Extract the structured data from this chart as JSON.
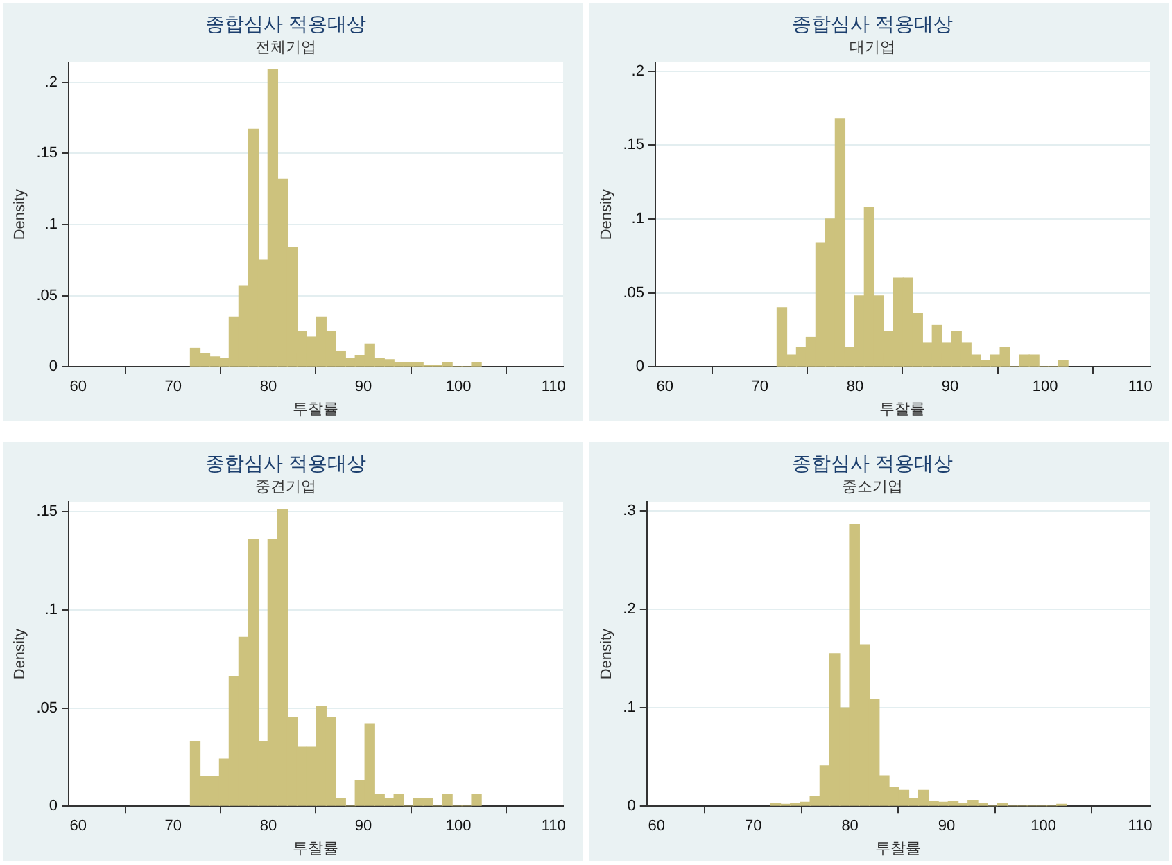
{
  "chart_data": [
    {
      "type": "histogram",
      "title": "종합심사 적용대상",
      "subtitle": "전체기업",
      "xlabel": "투찰률",
      "ylabel": "Density",
      "color": "#cdc27d",
      "grid": "y",
      "bins": [
        71.8,
        72.82,
        73.84,
        74.86,
        75.88,
        76.9,
        77.92,
        78.94,
        79.96,
        80.98,
        82,
        83.02,
        84.04,
        85.06,
        86.08,
        87.1,
        88.12,
        89.14,
        90.16,
        91.18,
        92.2,
        93.22,
        94.24,
        95.26,
        96.28,
        97.3,
        98.32,
        99.34,
        100.36,
        101.38,
        102.4
      ],
      "values": [
        0.013,
        0.009,
        0.007,
        0.006,
        0.035,
        0.057,
        0.167,
        0.075,
        0.209,
        0.132,
        0.084,
        0.025,
        0.021,
        0.035,
        0.025,
        0.011,
        0.006,
        0.008,
        0.016,
        0.006,
        0.005,
        0.003,
        0.003,
        0.003,
        0.001,
        0.001,
        0.003,
        0,
        0,
        0.003
      ],
      "xlim": [
        59,
        111
      ],
      "xticks": [
        60,
        70,
        80,
        90,
        100,
        110
      ],
      "ylim": [
        0,
        0.214
      ],
      "yticks": [
        {
          "value": 0,
          "label": "0"
        },
        {
          "value": 0.05,
          "label": ".05"
        },
        {
          "value": 0.1,
          "label": ".1"
        },
        {
          "value": 0.15,
          "label": ".15"
        },
        {
          "value": 0.2,
          "label": ".2"
        }
      ]
    },
    {
      "type": "histogram",
      "title": "종합심사 적용대상",
      "subtitle": "대기업",
      "xlabel": "투찰률",
      "ylabel": "Density",
      "color": "#cdc27d",
      "grid": "y",
      "bins": [
        71.8,
        72.82,
        73.84,
        74.86,
        75.88,
        76.9,
        77.92,
        78.94,
        79.96,
        80.98,
        82,
        83.02,
        84.04,
        85.06,
        86.08,
        87.1,
        88.12,
        89.14,
        90.16,
        91.18,
        92.2,
        93.22,
        94.24,
        95.26,
        96.28,
        97.3,
        98.32,
        99.34,
        100.36,
        101.38,
        102.4
      ],
      "values": [
        0.04,
        0.008,
        0.013,
        0.02,
        0.084,
        0.1,
        0.168,
        0.013,
        0.048,
        0.108,
        0.048,
        0.024,
        0.06,
        0.06,
        0.036,
        0.016,
        0.028,
        0.016,
        0.024,
        0.016,
        0.008,
        0.004,
        0.008,
        0.013,
        0,
        0.008,
        0.008,
        0,
        0,
        0.004
      ],
      "xlim": [
        59,
        111
      ],
      "xticks": [
        60,
        70,
        80,
        90,
        100,
        110
      ],
      "ylim": [
        0,
        0.206
      ],
      "yticks": [
        {
          "value": 0,
          "label": "0"
        },
        {
          "value": 0.05,
          "label": ".05"
        },
        {
          "value": 0.1,
          "label": ".1"
        },
        {
          "value": 0.15,
          "label": ".15"
        },
        {
          "value": 0.2,
          "label": ".2"
        }
      ]
    },
    {
      "type": "histogram",
      "title": "종합심사 적용대상",
      "subtitle": "중견기업",
      "xlabel": "투찰률",
      "ylabel": "Density",
      "color": "#cdc27d",
      "grid": "y",
      "bins": [
        71.8,
        72.82,
        73.84,
        74.86,
        75.88,
        76.9,
        77.92,
        78.94,
        79.96,
        80.98,
        82,
        83.02,
        84.04,
        85.06,
        86.08,
        87.1,
        88.12,
        89.14,
        90.16,
        91.18,
        92.2,
        93.22,
        94.24,
        95.26,
        96.28,
        97.3,
        98.32,
        99.34,
        100.36,
        101.38,
        102.4
      ],
      "values": [
        0.033,
        0.015,
        0.015,
        0.024,
        0.066,
        0.086,
        0.136,
        0.033,
        0.136,
        0.151,
        0.045,
        0.03,
        0.03,
        0.051,
        0.045,
        0.004,
        0,
        0.013,
        0.042,
        0.006,
        0.004,
        0.006,
        0,
        0.004,
        0.004,
        0,
        0.006,
        0,
        0,
        0.006
      ],
      "xlim": [
        59,
        111
      ],
      "xticks": [
        60,
        70,
        80,
        90,
        100,
        110
      ],
      "ylim": [
        0,
        0.155
      ],
      "yticks": [
        {
          "value": 0,
          "label": "0"
        },
        {
          "value": 0.05,
          "label": ".05"
        },
        {
          "value": 0.1,
          "label": ".1"
        },
        {
          "value": 0.15,
          "label": ".15"
        }
      ]
    },
    {
      "type": "histogram",
      "title": "종합심사 적용대상",
      "subtitle": "중소기업",
      "xlabel": "투찰률",
      "ylabel": "Density",
      "color": "#cdc27d",
      "grid": "y",
      "bins": [
        71.8,
        72.82,
        73.84,
        74.86,
        75.88,
        76.9,
        77.92,
        78.94,
        79.96,
        80.98,
        82,
        83.02,
        84.04,
        85.06,
        86.08,
        87.1,
        88.12,
        89.14,
        90.16,
        91.18,
        92.2,
        93.22,
        94.24,
        95.26,
        96.28,
        97.3,
        98.32,
        99.34,
        100.36,
        101.38,
        102.4
      ],
      "values": [
        0.003,
        0.002,
        0.003,
        0.004,
        0.01,
        0.041,
        0.155,
        0.1,
        0.286,
        0.164,
        0.108,
        0.031,
        0.019,
        0.016,
        0.008,
        0.016,
        0.005,
        0.004,
        0.005,
        0.003,
        0.006,
        0.003,
        0,
        0.003,
        0,
        0,
        0,
        0,
        0,
        0.002
      ],
      "xlim": [
        59,
        111
      ],
      "xticks": [
        60,
        70,
        80,
        90,
        100,
        110
      ],
      "ylim": [
        0,
        0.309
      ],
      "yticks": [
        {
          "value": 0,
          "label": "0"
        },
        {
          "value": 0.1,
          "label": ".1"
        },
        {
          "value": 0.2,
          "label": ".2"
        },
        {
          "value": 0.3,
          "label": ".3"
        }
      ]
    }
  ]
}
